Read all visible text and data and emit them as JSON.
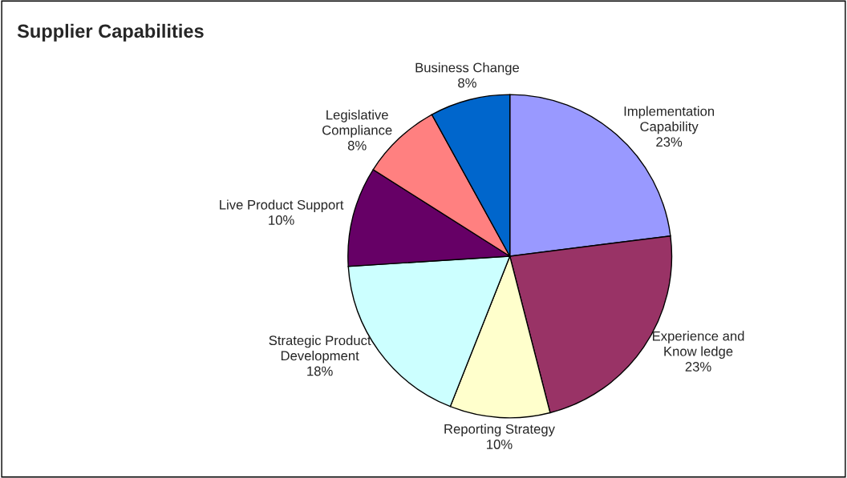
{
  "chart_data": {
    "type": "pie",
    "title": "Supplier Capabilities",
    "categories": [
      "Implementation\nCapability",
      "Experience and\nKnow ledge",
      "Reporting Strategy",
      "Strategic Product\nDevelopment",
      "Live Product Support",
      "Legislative\nCompliance",
      "Business Change"
    ],
    "values": [
      23,
      23,
      10,
      18,
      10,
      8,
      8
    ],
    "colors": [
      "#9999ff",
      "#993366",
      "#ffffcc",
      "#ccffff",
      "#660066",
      "#ff8080",
      "#0066cc"
    ],
    "value_labels": [
      "23%",
      "23%",
      "10%",
      "18%",
      "10%",
      "8%",
      "8%"
    ],
    "legend": false
  }
}
